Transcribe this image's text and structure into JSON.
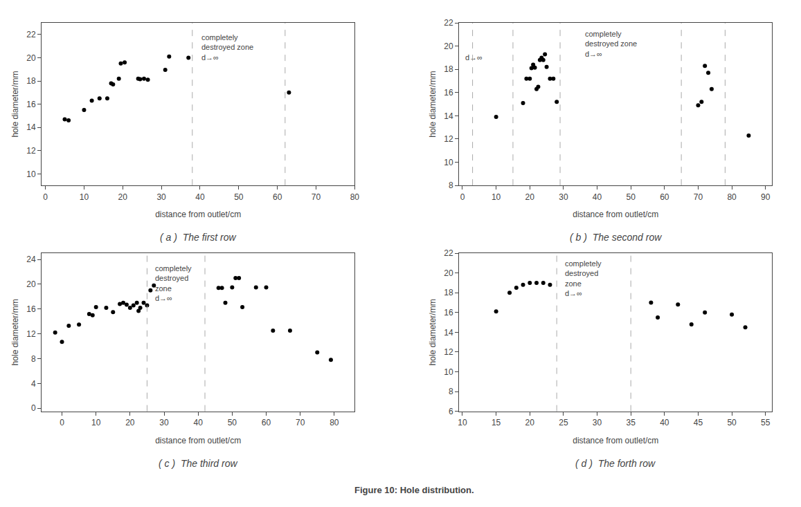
{
  "title": "Figure 10: Hole distribution.",
  "chart_data": [
    {
      "type": "scatter",
      "title": "( a )  The first row",
      "x_label": "distance from outlet/cm",
      "y_label": "hole diameter/mm",
      "xlim": [
        -1,
        80
      ],
      "ylim": [
        9,
        23
      ],
      "xticks": [
        0,
        10,
        20,
        30,
        40,
        50,
        60,
        70,
        80
      ],
      "yticks": [
        10,
        12,
        14,
        16,
        18,
        20,
        22
      ],
      "grid": false,
      "color": "#000000",
      "vlines": {
        "values": [
          38,
          62
        ],
        "color": "#aaaaaa",
        "line_style": "dashed"
      },
      "annotations": [
        {
          "text": "completely\ndestroyed zone\nd→∞",
          "x": 40,
          "y": 22.2
        }
      ],
      "x": [
        5,
        6,
        10,
        12,
        14,
        16,
        17,
        17.5,
        19,
        19.5,
        20.5,
        24,
        24.5,
        25.5,
        26.5,
        31,
        32,
        37,
        63
      ],
      "values": [
        14.7,
        14.6,
        15.5,
        16.3,
        16.5,
        16.5,
        17.8,
        17.7,
        18.2,
        19.5,
        19.6,
        18.2,
        18.15,
        18.2,
        18.1,
        18.95,
        20.1,
        20.0,
        17.0
      ]
    },
    {
      "type": "scatter",
      "title": "( b )  The second row",
      "x_label": "distance from outlet/cm",
      "y_label": "hole diameter/mm",
      "xlim": [
        -1,
        92
      ],
      "ylim": [
        8,
        22
      ],
      "xticks": [
        0,
        10,
        20,
        30,
        40,
        50,
        60,
        70,
        80,
        90
      ],
      "yticks": [
        8,
        10,
        12,
        14,
        16,
        18,
        20,
        22
      ],
      "grid": false,
      "color": "#000000",
      "vlines": {
        "values": [
          3,
          15,
          29,
          65,
          78
        ],
        "color": "#aaaaaa",
        "line_style": "dashed"
      },
      "annotations": [
        {
          "text": "d→∞",
          "x": 0.5,
          "y": 19.0
        },
        {
          "text": "completely\ndestroyed zone\nd→∞",
          "x": 36,
          "y": 21.5
        }
      ],
      "x": [
        10,
        18,
        19,
        20,
        20.5,
        21,
        21.5,
        22,
        22.5,
        23,
        23.5,
        24,
        24.5,
        25,
        26,
        27,
        28,
        70,
        71,
        72,
        73,
        74,
        85
      ],
      "values": [
        13.9,
        15.1,
        17.2,
        17.2,
        18.1,
        18.4,
        18.15,
        16.3,
        16.5,
        18.8,
        19.0,
        18.8,
        19.3,
        18.2,
        17.2,
        17.2,
        15.2,
        14.9,
        15.2,
        18.3,
        17.7,
        16.3,
        12.3
      ]
    },
    {
      "type": "scatter",
      "title": "( c )  The third row",
      "x_label": "distance from outlet/cm",
      "y_label": "hole diameter/mm",
      "xlim": [
        -6,
        86
      ],
      "ylim": [
        -0.5,
        25
      ],
      "xticks": [
        0,
        10,
        20,
        30,
        40,
        50,
        60,
        70,
        80
      ],
      "yticks": [
        0,
        4,
        8,
        12,
        16,
        20,
        24
      ],
      "grid": false,
      "color": "#000000",
      "vlines": {
        "values": [
          25,
          42
        ],
        "color": "#aaaaaa",
        "line_style": "dashed"
      },
      "annotations": [
        {
          "text": "completely\ndestroyed\nzone\nd→∞",
          "x": 27,
          "y": 23.5
        }
      ],
      "x": [
        -2,
        0,
        2,
        5,
        8,
        9,
        10,
        13,
        15,
        17,
        18,
        19,
        20,
        21,
        22,
        22.5,
        23,
        24,
        25,
        26,
        27,
        46,
        47,
        48,
        50,
        51,
        52,
        53,
        57,
        60,
        62,
        67,
        75,
        79
      ],
      "values": [
        12.2,
        10.7,
        13.3,
        13.5,
        15.2,
        15.0,
        16.3,
        16.2,
        15.5,
        16.8,
        17.0,
        16.7,
        16.2,
        16.6,
        17.0,
        15.7,
        16.2,
        17.0,
        16.6,
        19.0,
        19.8,
        19.4,
        19.4,
        17.0,
        19.5,
        21.0,
        21.0,
        16.3,
        19.5,
        19.5,
        12.5,
        12.5,
        9.0,
        7.8
      ]
    },
    {
      "type": "scatter",
      "title": "( d )  The forth row",
      "x_label": "distance from outlet/cm",
      "y_label": "hole diameter/mm",
      "xlim": [
        9.5,
        56
      ],
      "ylim": [
        6,
        22
      ],
      "xticks": [
        10,
        15,
        20,
        25,
        30,
        35,
        40,
        45,
        50,
        55
      ],
      "yticks": [
        6,
        8,
        10,
        12,
        14,
        16,
        18,
        20,
        22
      ],
      "grid": false,
      "color": "#000000",
      "vlines": {
        "values": [
          24,
          35
        ],
        "color": "#aaaaaa",
        "line_style": "dashed"
      },
      "annotations": [
        {
          "text": "completely\ndestroyed\nzone\nd→∞",
          "x": 25,
          "y": 21.5
        }
      ],
      "x": [
        15,
        17,
        18,
        19,
        20,
        21,
        22,
        23,
        38,
        39,
        42,
        44,
        46,
        50,
        52
      ],
      "values": [
        16.1,
        18.0,
        18.5,
        18.8,
        19.0,
        19.0,
        19.0,
        18.8,
        17.0,
        15.5,
        16.8,
        14.8,
        16.0,
        15.8,
        14.5
      ]
    }
  ]
}
